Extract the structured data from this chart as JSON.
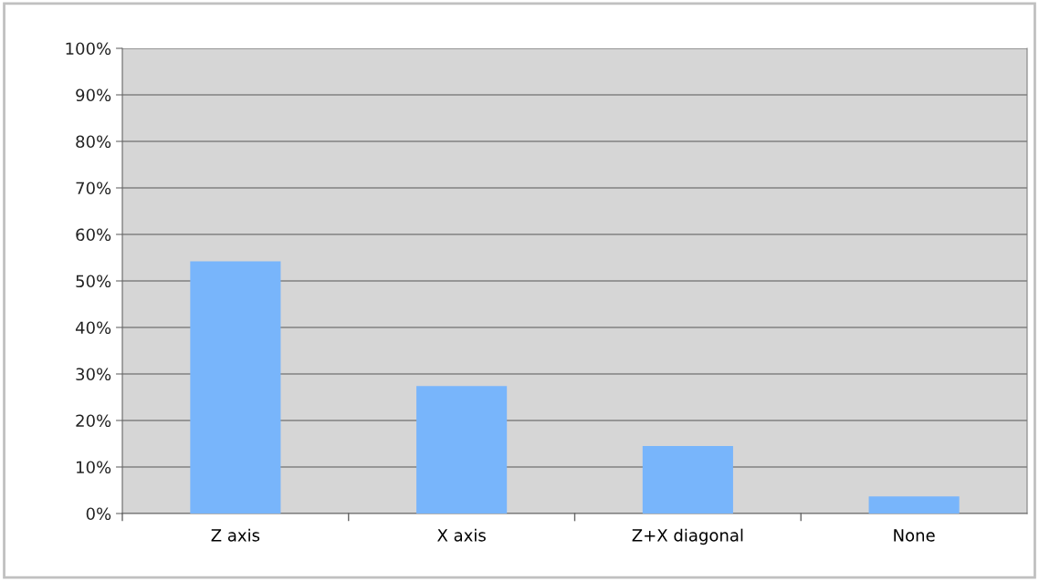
{
  "chart_data": {
    "type": "bar",
    "categories": [
      "Z axis",
      "X axis",
      "Z+X diagonal",
      "None"
    ],
    "values": [
      54.2,
      27.4,
      14.5,
      3.7
    ],
    "color": "#78b5fb",
    "ylim": [
      0,
      100
    ],
    "yticks": [
      {
        "value": 0,
        "label": "0%"
      },
      {
        "value": 10,
        "label": "10%"
      },
      {
        "value": 20,
        "label": "20%"
      },
      {
        "value": 30,
        "label": "30%"
      },
      {
        "value": 40,
        "label": "40%"
      },
      {
        "value": 50,
        "label": "50%"
      },
      {
        "value": 60,
        "label": "60%"
      },
      {
        "value": 70,
        "label": "70%"
      },
      {
        "value": 80,
        "label": "80%"
      },
      {
        "value": 90,
        "label": "90%"
      },
      {
        "value": 100,
        "label": "100%"
      }
    ],
    "grid": "y"
  }
}
